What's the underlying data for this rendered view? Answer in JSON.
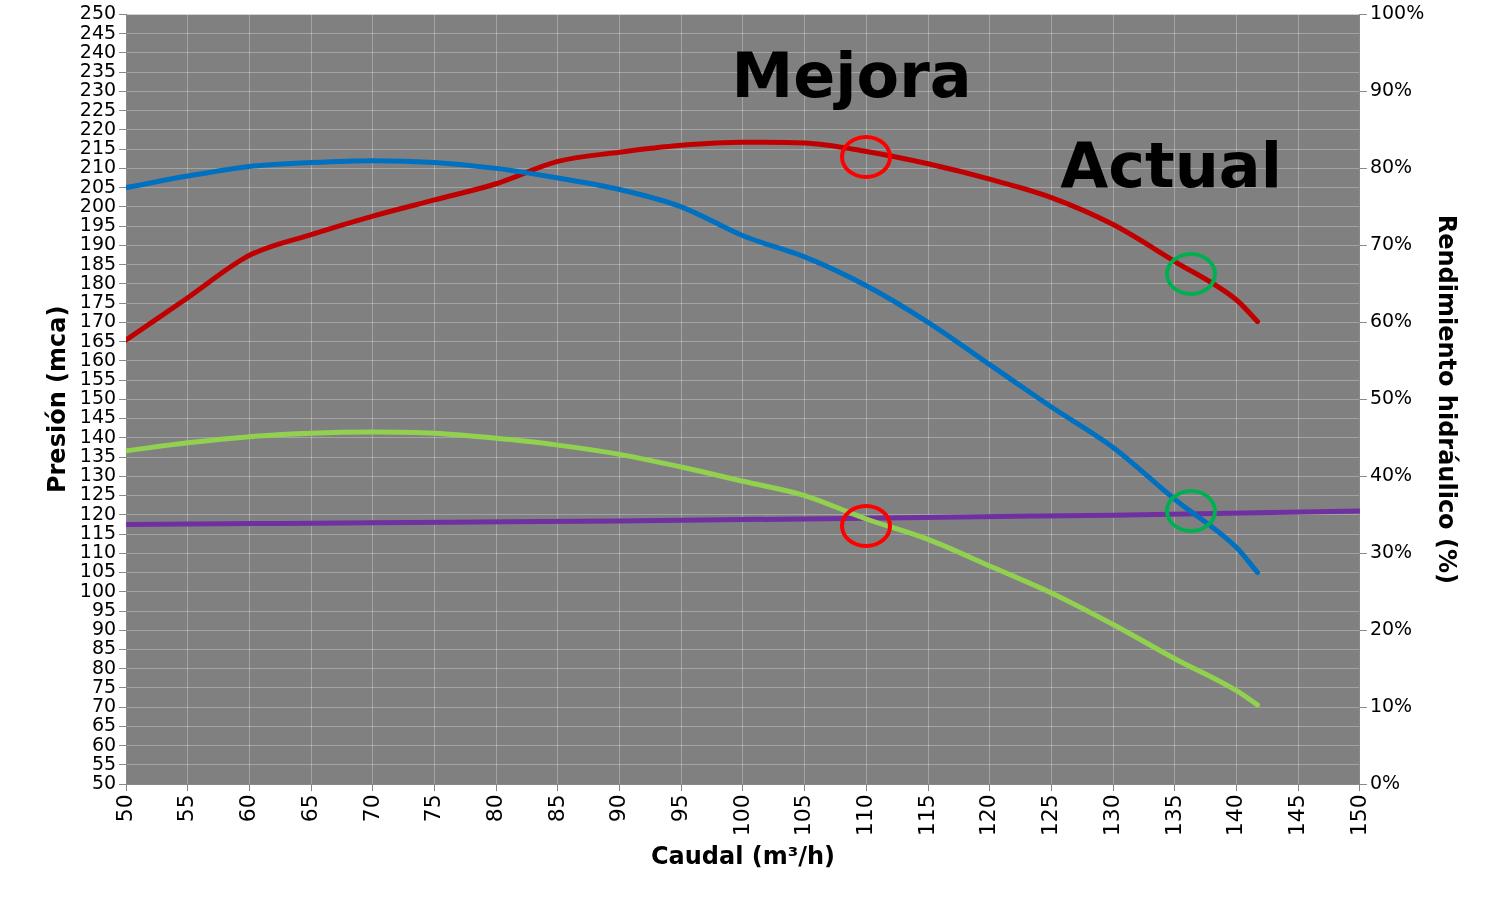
{
  "chart_data": {
    "type": "line",
    "xlabel": "Caudal (m³/h)",
    "ylabel": "Presión (mca)",
    "y2label": "Rendimiento hidráulico (%)",
    "xlim": [
      50,
      150
    ],
    "xticks": [
      50,
      55,
      60,
      65,
      70,
      75,
      80,
      85,
      90,
      95,
      100,
      105,
      110,
      115,
      120,
      125,
      130,
      135,
      140,
      145,
      150
    ],
    "ylim": [
      50,
      250
    ],
    "yticks": [
      50,
      55,
      60,
      65,
      70,
      75,
      80,
      85,
      90,
      95,
      100,
      105,
      110,
      115,
      120,
      125,
      130,
      135,
      140,
      145,
      150,
      155,
      160,
      165,
      170,
      175,
      180,
      185,
      190,
      195,
      200,
      205,
      210,
      215,
      220,
      225,
      230,
      235,
      240,
      245,
      250
    ],
    "y2lim": [
      0,
      100
    ],
    "y2ticks": [
      {
        "value": 0,
        "label": "0%"
      },
      {
        "value": 10,
        "label": "10%"
      },
      {
        "value": 20,
        "label": "20%"
      },
      {
        "value": 30,
        "label": "30%"
      },
      {
        "value": 40,
        "label": "40%"
      },
      {
        "value": 50,
        "label": "50%"
      },
      {
        "value": 60,
        "label": "60%"
      },
      {
        "value": 70,
        "label": "70%"
      },
      {
        "value": 80,
        "label": "80%"
      },
      {
        "value": 90,
        "label": "90%"
      },
      {
        "value": 100,
        "label": "100%"
      }
    ],
    "grid": true,
    "legend": false,
    "marker": "none",
    "line_style": "solid",
    "series": [
      {
        "color": "#0070c0",
        "x": [
          50,
          55,
          60,
          65,
          70,
          75,
          80,
          85,
          90,
          95,
          100,
          105,
          110,
          115,
          120,
          125,
          130,
          135,
          140,
          141.7
        ],
        "values": [
          205,
          208,
          210.5,
          211.5,
          212,
          211.5,
          210,
          207.5,
          204.5,
          200,
          192.5,
          187,
          179.5,
          170,
          159,
          148,
          137.5,
          124,
          111.5,
          105
        ]
      },
      {
        "color": "#c00000",
        "axis": "y2",
        "x": [
          50,
          55,
          60,
          65,
          70,
          75,
          80,
          85,
          90,
          95,
          100,
          105,
          110,
          115,
          120,
          125,
          130,
          135,
          140,
          141.7
        ],
        "values": [
          57.7,
          63.2,
          68.7,
          71.4,
          73.8,
          75.9,
          78,
          80.9,
          82.1,
          83,
          83.4,
          83.3,
          82.2,
          80.6,
          78.6,
          76.2,
          72.7,
          67.9,
          62.9,
          60.1
        ]
      },
      {
        "color": "#92d050",
        "x": [
          50,
          55,
          60,
          65,
          70,
          75,
          80,
          85,
          90,
          95,
          100,
          105,
          110,
          115,
          120,
          125,
          130,
          135,
          140,
          141.7
        ],
        "values": [
          136.6,
          138.7,
          140.3,
          141.2,
          141.5,
          141.2,
          139.9,
          138.1,
          135.7,
          132.4,
          128.7,
          125,
          118.9,
          113.6,
          106.7,
          99.7,
          91.5,
          82.6,
          74.3,
          70.6
        ]
      },
      {
        "color": "#7030a0",
        "x": [
          50,
          70,
          90,
          110,
          130,
          150
        ],
        "values": [
          117.5,
          117.9,
          118.4,
          119.1,
          119.9,
          121
        ]
      }
    ],
    "annotations": [
      "Mejora",
      "Actual"
    ]
  }
}
